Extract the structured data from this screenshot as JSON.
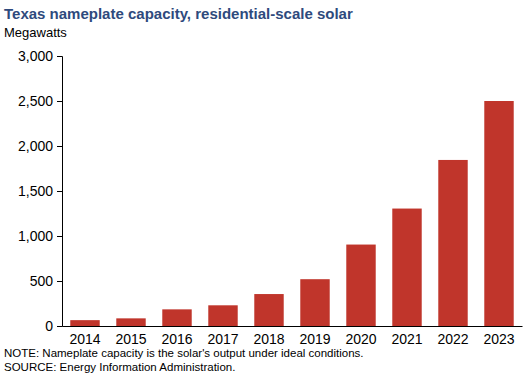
{
  "chart_data": {
    "type": "bar",
    "title": "Texas nameplate capacity, residential-scale solar",
    "y_label": "Megawatts",
    "categories": [
      "2014",
      "2015",
      "2016",
      "2017",
      "2018",
      "2019",
      "2020",
      "2021",
      "2022",
      "2023"
    ],
    "values": [
      65,
      85,
      185,
      230,
      355,
      520,
      905,
      1305,
      1845,
      2500
    ],
    "color": "#c0352b",
    "ylim": [
      0,
      3000
    ],
    "yticks": [
      0,
      500,
      {
        "value": 1000,
        "label": "1,000"
      },
      {
        "value": 1500,
        "label": "1,500"
      },
      {
        "value": 2000,
        "label": "2,000"
      },
      {
        "value": 2500,
        "label": "2,500"
      },
      {
        "value": 3000,
        "label": "3,000"
      }
    ],
    "grid": false,
    "annotations": [
      "NOTE: Nameplate capacity is the solar's output under ideal conditions.",
      "SOURCE: Energy Information Administration."
    ]
  }
}
